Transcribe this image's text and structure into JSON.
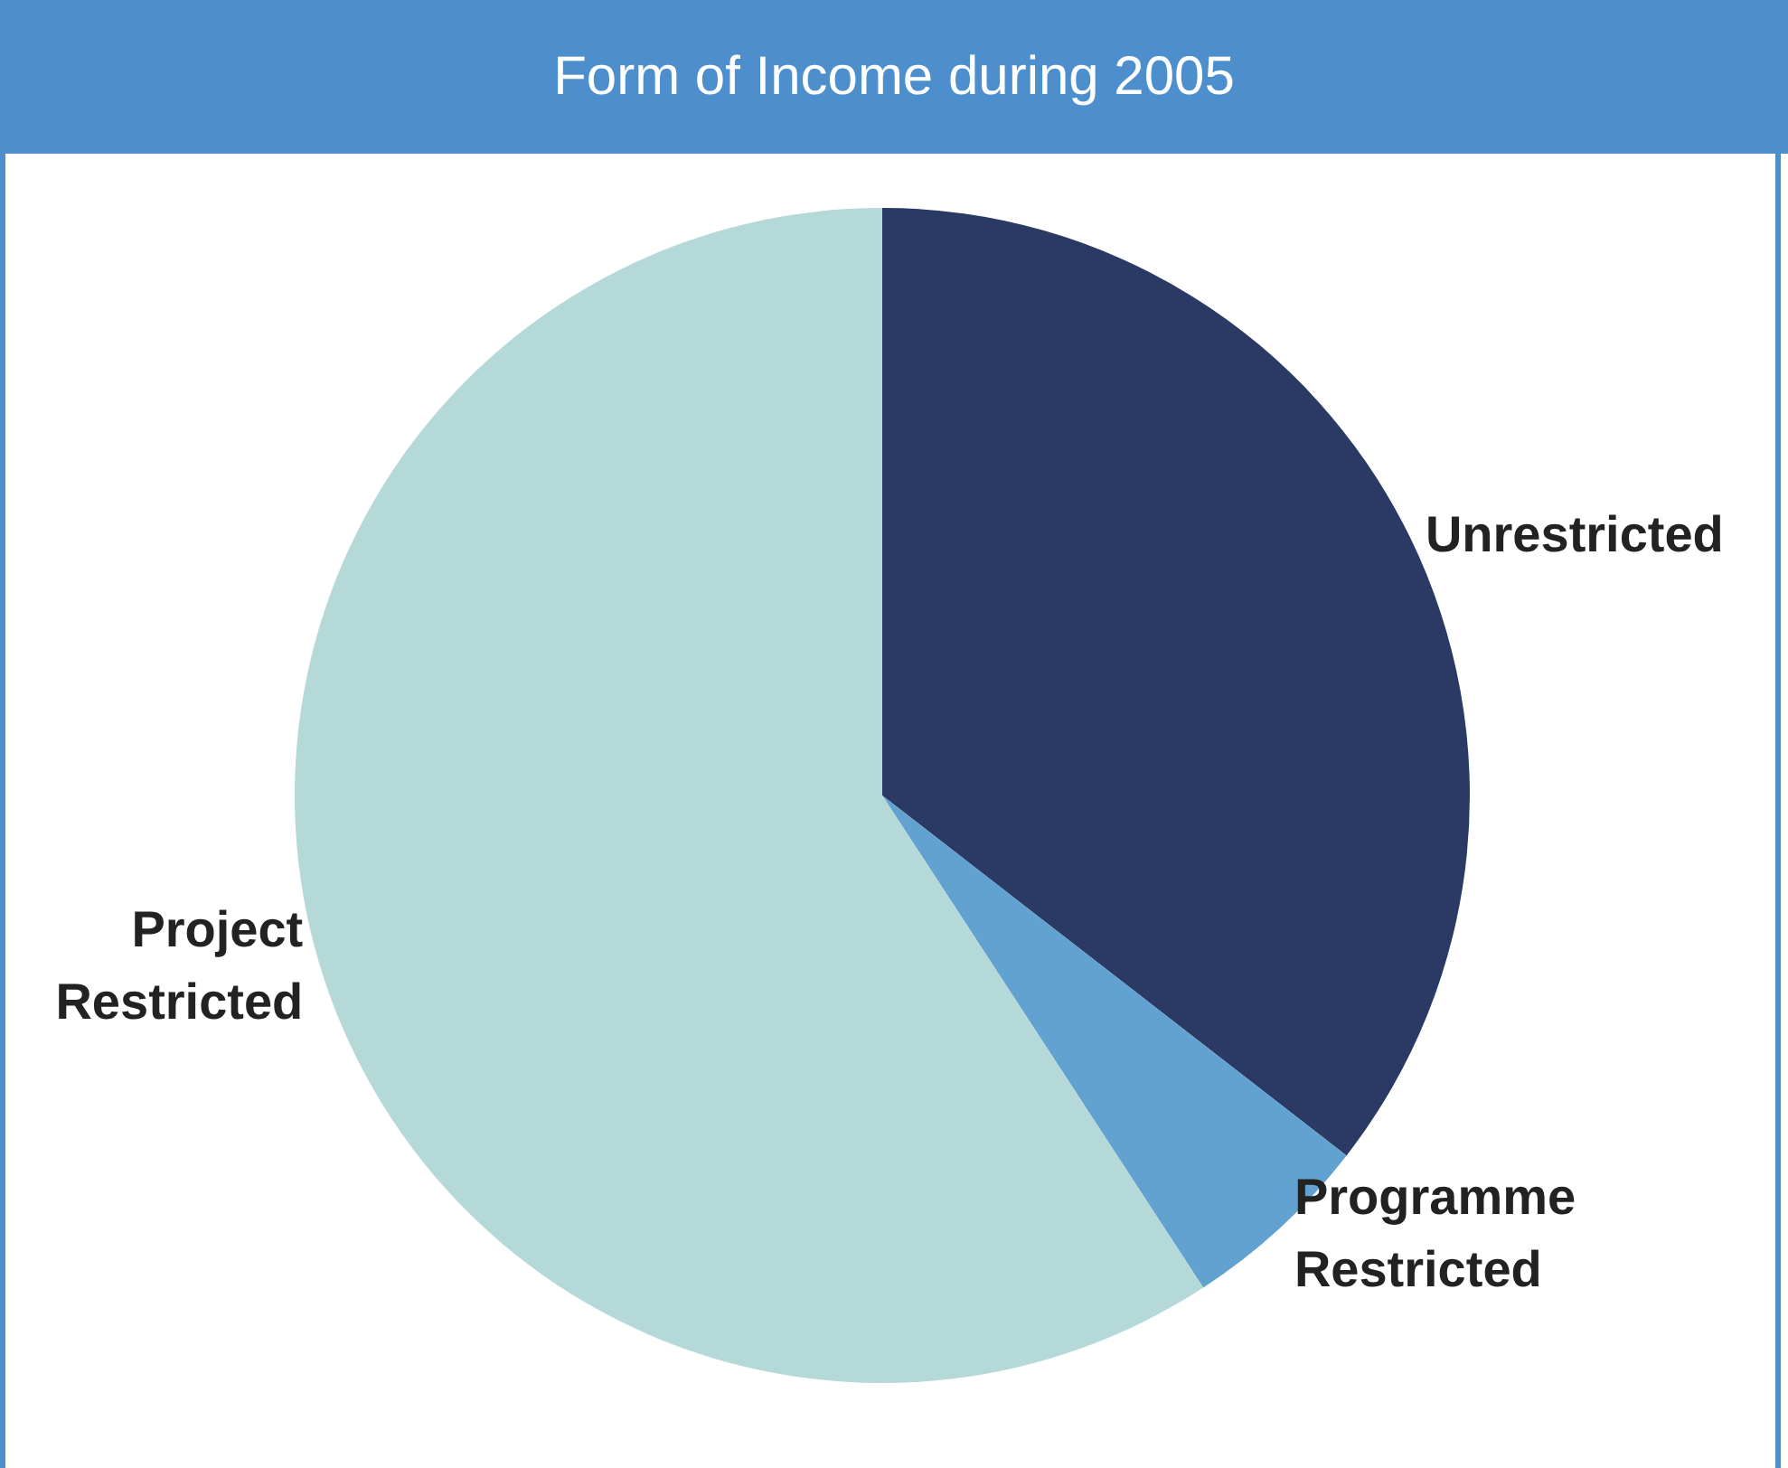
{
  "chart_data": {
    "type": "pie",
    "title": "Form of Income during 2005",
    "categories": [
      "Unrestricted",
      "Programme Restricted",
      "Project Restricted"
    ],
    "values": [
      35.5,
      5.3,
      59.2
    ],
    "colors": [
      "#2a3a64",
      "#62a2d0",
      "#b5d9d9"
    ],
    "legend": false
  }
}
